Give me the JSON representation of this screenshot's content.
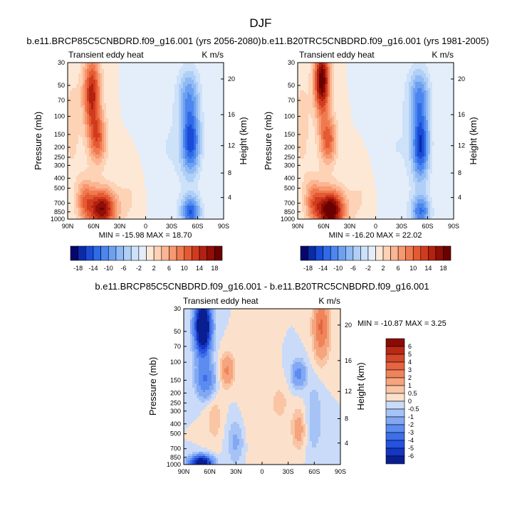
{
  "figure_title": "DJF",
  "chart_data": [
    {
      "type": "heatmap",
      "id": "future",
      "title": "b.e11.BRCP85C5CNBDRD.f09_g16.001 (yrs 2056-2080)",
      "left_label": "Transient eddy heat",
      "right_label": "K m/s",
      "xlabel": "",
      "ylabel": "Pressure (mb)",
      "ylabel_right": "Height (km)",
      "x_ticks": [
        "90N",
        "60N",
        "30N",
        "0",
        "30S",
        "60S",
        "90S"
      ],
      "x_tick_values": [
        90,
        60,
        30,
        0,
        -30,
        -60,
        -90
      ],
      "y_ticks": [
        "30",
        "50",
        "70",
        "100",
        "150",
        "200",
        "250",
        "300",
        "400",
        "500",
        "700",
        "850",
        "1000"
      ],
      "y_tick_values": [
        30,
        50,
        70,
        100,
        150,
        200,
        250,
        300,
        400,
        500,
        700,
        850,
        1000
      ],
      "height_ticks": [
        "20",
        "16",
        "12",
        "8",
        "4"
      ],
      "height_tick_values": [
        20,
        16,
        12,
        8,
        4
      ],
      "min_max_text": "MIN = -15.98   MAX = 18.70",
      "min": -15.98,
      "max": 18.7,
      "colorbar_labels": [
        "-18",
        "-14",
        "-10",
        "-6",
        "-2",
        "2",
        "6",
        "10",
        "14",
        "18"
      ],
      "colorbar_levels": [
        -18,
        -16,
        -14,
        -12,
        -10,
        -8,
        -6,
        -4,
        -2,
        0,
        2,
        4,
        6,
        8,
        10,
        12,
        14,
        16,
        18
      ],
      "features": [
        {
          "lat": 62,
          "p": 60,
          "w": 10,
          "s": 0.85,
          "amp": 15
        },
        {
          "lat": 55,
          "p": 170,
          "w": 10,
          "s": 0.55,
          "amp": 10
        },
        {
          "lat": 50,
          "p": 800,
          "w": 16,
          "s": 0.45,
          "amp": 18
        },
        {
          "lat": 70,
          "p": 650,
          "w": 10,
          "s": 0.5,
          "amp": 8
        },
        {
          "lat": 18,
          "p": 600,
          "w": 14,
          "s": 0.7,
          "amp": 2
        },
        {
          "lat": -52,
          "p": 175,
          "w": 11,
          "s": 0.75,
          "amp": -15
        },
        {
          "lat": -52,
          "p": 850,
          "w": 11,
          "s": 0.35,
          "amp": -14
        },
        {
          "lat": -50,
          "p": 60,
          "w": 12,
          "s": 0.6,
          "amp": -8
        },
        {
          "lat": -25,
          "p": 200,
          "w": 22,
          "s": 1.4,
          "amp": -2
        },
        {
          "lat": 85,
          "p": 120,
          "w": 10,
          "s": 1.2,
          "amp": 3
        }
      ]
    },
    {
      "type": "heatmap",
      "id": "historical",
      "title": "b.e11.B20TRC5CNBDRD.f09_g16.001 (yrs 1981-2005)",
      "left_label": "Transient eddy heat",
      "right_label": "K m/s",
      "xlabel": "",
      "ylabel": "Pressure (mb)",
      "ylabel_right": "Height (km)",
      "x_ticks": [
        "90N",
        "60N",
        "30N",
        "0",
        "30S",
        "60S",
        "90S"
      ],
      "x_tick_values": [
        90,
        60,
        30,
        0,
        -30,
        -60,
        -90
      ],
      "y_ticks": [
        "30",
        "50",
        "70",
        "100",
        "150",
        "200",
        "250",
        "300",
        "400",
        "500",
        "700",
        "850",
        "1000"
      ],
      "y_tick_values": [
        30,
        50,
        70,
        100,
        150,
        200,
        250,
        300,
        400,
        500,
        700,
        850,
        1000
      ],
      "height_ticks": [
        "20",
        "16",
        "12",
        "8",
        "4"
      ],
      "height_tick_values": [
        20,
        16,
        12,
        8,
        4
      ],
      "min_max_text": "MIN = -16.20   MAX = 22.02",
      "min": -16.2,
      "max": 22.02,
      "colorbar_labels": [
        "-18",
        "-14",
        "-10",
        "-6",
        "-2",
        "2",
        "6",
        "10",
        "14",
        "18"
      ],
      "colorbar_levels": [
        -18,
        -16,
        -14,
        -12,
        -10,
        -8,
        -6,
        -4,
        -2,
        0,
        2,
        4,
        6,
        8,
        10,
        12,
        14,
        16,
        18
      ],
      "features": [
        {
          "lat": 62,
          "p": 45,
          "w": 9,
          "s": 0.75,
          "amp": 20
        },
        {
          "lat": 55,
          "p": 170,
          "w": 10,
          "s": 0.55,
          "amp": 11
        },
        {
          "lat": 52,
          "p": 820,
          "w": 16,
          "s": 0.45,
          "amp": 21
        },
        {
          "lat": 72,
          "p": 650,
          "w": 10,
          "s": 0.5,
          "amp": 8
        },
        {
          "lat": 18,
          "p": 600,
          "w": 14,
          "s": 0.7,
          "amp": 2
        },
        {
          "lat": -52,
          "p": 190,
          "w": 10,
          "s": 0.8,
          "amp": -16
        },
        {
          "lat": -52,
          "p": 850,
          "w": 11,
          "s": 0.35,
          "amp": -12
        },
        {
          "lat": -50,
          "p": 60,
          "w": 12,
          "s": 0.6,
          "amp": -9
        },
        {
          "lat": -25,
          "p": 200,
          "w": 22,
          "s": 1.4,
          "amp": -2
        },
        {
          "lat": 85,
          "p": 120,
          "w": 10,
          "s": 1.2,
          "amp": 3
        }
      ]
    },
    {
      "type": "heatmap",
      "id": "difference",
      "title": "b.e11.BRCP85C5CNBDRD.f09_g16.001 - b.e11.B20TRC5CNBDRD.f09_g16.001",
      "left_label": "Transient eddy heat",
      "right_label": "K m/s",
      "xlabel": "",
      "ylabel": "Pressure (mb)",
      "ylabel_right": "Height (km)",
      "x_ticks": [
        "90N",
        "60N",
        "30N",
        "0",
        "30S",
        "60S",
        "90S"
      ],
      "x_tick_values": [
        90,
        60,
        30,
        0,
        -30,
        -60,
        -90
      ],
      "y_ticks": [
        "30",
        "50",
        "70",
        "100",
        "150",
        "200",
        "250",
        "300",
        "400",
        "500",
        "700",
        "850",
        "1000"
      ],
      "y_tick_values": [
        30,
        50,
        70,
        100,
        150,
        200,
        250,
        300,
        400,
        500,
        700,
        850,
        1000
      ],
      "height_ticks": [
        "20",
        "16",
        "12",
        "8",
        "4"
      ],
      "height_tick_values": [
        20,
        16,
        12,
        8,
        4
      ],
      "min_max_text": "MIN = -10.87  MAX =  3.25",
      "min": -10.87,
      "max": 3.25,
      "colorbar_labels": [
        "6",
        "5",
        "4",
        "3",
        "2",
        "1",
        "0.5",
        "0",
        "-0.5",
        "-1",
        "-2",
        "-3",
        "-4",
        "-5",
        "-6"
      ],
      "colorbar_levels": [
        -6,
        -5,
        -4,
        -3,
        -2,
        -1,
        -0.5,
        0,
        0.5,
        1,
        2,
        3,
        4,
        5,
        6
      ],
      "features": [
        {
          "lat": 68,
          "p": 45,
          "w": 9,
          "s": 0.6,
          "amp": -10
        },
        {
          "lat": 65,
          "p": 150,
          "w": 11,
          "s": 0.4,
          "amp": -3
        },
        {
          "lat": 70,
          "p": 950,
          "w": 12,
          "s": 0.15,
          "amp": -8
        },
        {
          "lat": 40,
          "p": 120,
          "w": 8,
          "s": 0.35,
          "amp": 2.2
        },
        {
          "lat": -68,
          "p": 45,
          "w": 9,
          "s": 0.7,
          "amp": 3.2
        },
        {
          "lat": -42,
          "p": 130,
          "w": 8,
          "s": 0.3,
          "amp": -2.5
        },
        {
          "lat": -42,
          "p": 450,
          "w": 8,
          "s": 0.45,
          "amp": 1.5
        },
        {
          "lat": -60,
          "p": 350,
          "w": 9,
          "s": 0.8,
          "amp": -1
        },
        {
          "lat": -20,
          "p": 250,
          "w": 10,
          "s": 0.4,
          "amp": 0.8
        },
        {
          "lat": 10,
          "p": 400,
          "w": 15,
          "s": 1.0,
          "amp": 0.4
        },
        {
          "lat": 30,
          "p": 600,
          "w": 10,
          "s": 0.5,
          "amp": -1.2
        },
        {
          "lat": 55,
          "p": 350,
          "w": 10,
          "s": 0.6,
          "amp": 0.8
        }
      ]
    }
  ]
}
